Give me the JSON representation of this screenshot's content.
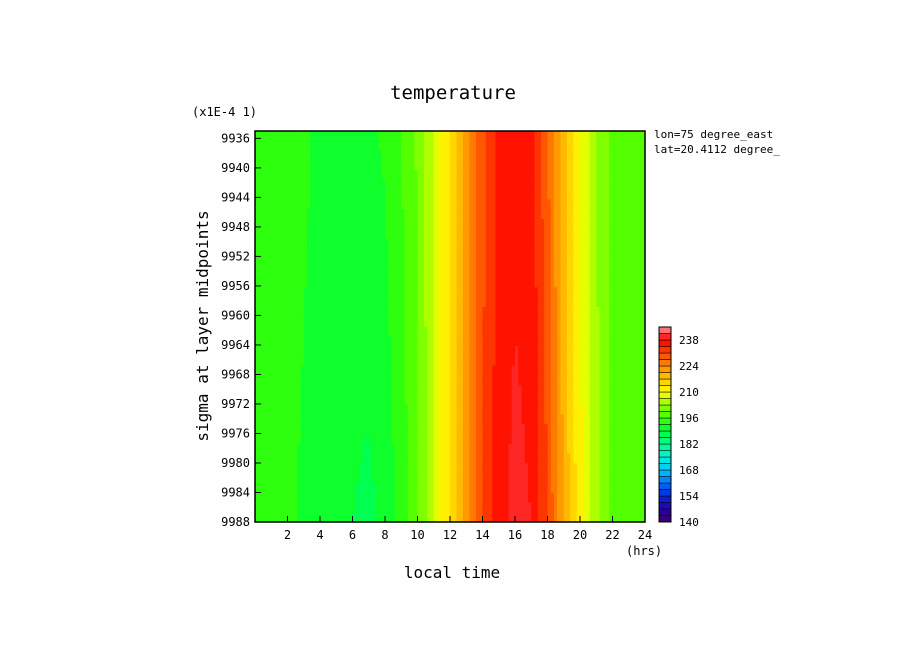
{
  "chart_data": {
    "type": "heatmap",
    "title": "temperature",
    "y_scale_note": "(x1E-4 1)",
    "xlabel": "local time",
    "x_unit": "(hrs)",
    "ylabel": "sigma at layer midpoints",
    "annotations": [
      "lon=75 degree_east",
      "lat=20.4112 degree_"
    ],
    "x_ticks": [
      2,
      4,
      6,
      8,
      10,
      12,
      14,
      16,
      18,
      20,
      22,
      24
    ],
    "y_ticks": [
      9936,
      9940,
      9944,
      9948,
      9952,
      9956,
      9960,
      9964,
      9968,
      9972,
      9976,
      9980,
      9984,
      9988
    ],
    "xlim": [
      0,
      24
    ],
    "ylim": [
      9988,
      9935
    ],
    "x": [
      0,
      1,
      2,
      3,
      4,
      5,
      6,
      7,
      8,
      9,
      10,
      11,
      12,
      13,
      14,
      15,
      16,
      17,
      18,
      19,
      20,
      21,
      22,
      23,
      24
    ],
    "y": [
      9935,
      9988
    ],
    "z": [
      [
        196,
        195,
        194,
        193,
        192,
        192,
        192,
        192,
        193,
        196,
        200,
        207,
        214,
        222,
        230,
        235,
        237,
        236,
        228,
        218,
        210,
        203,
        199,
        197,
        196
      ],
      [
        196,
        195,
        193,
        192,
        191,
        190,
        189,
        188,
        190,
        194,
        199,
        206,
        214,
        222,
        231,
        237,
        239,
        238,
        231,
        220,
        211,
        204,
        199,
        197,
        196
      ]
    ],
    "colorbar": {
      "ticks": [
        140,
        154,
        168,
        182,
        196,
        210,
        224,
        238
      ],
      "min": 140,
      "max": 245,
      "step": 3.5
    }
  }
}
